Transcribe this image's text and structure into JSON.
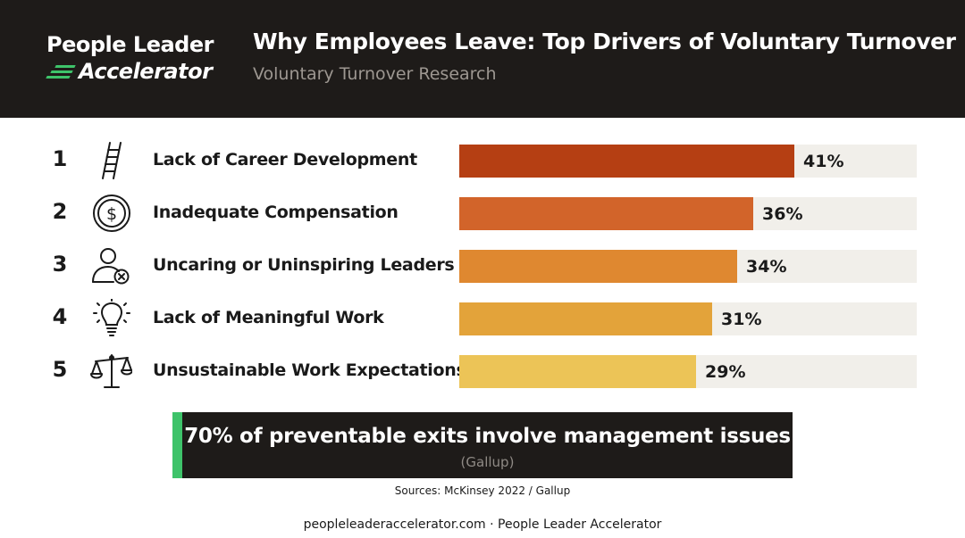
{
  "brand": {
    "logo_line1": "People Leader",
    "logo_line2": "Accelerator",
    "accent_color": "#3ec36a"
  },
  "header": {
    "title": "Why Employees Leave: Top Drivers of Voluntary Turnover",
    "subtitle": "Voluntary Turnover Research"
  },
  "chart_data": {
    "type": "bar",
    "orientation": "horizontal",
    "title": "Why Employees Leave: Top Drivers of Voluntary Turnover",
    "subtitle": "Voluntary Turnover Research",
    "xlim": [
      0,
      56
    ],
    "unit": "%",
    "grid": false,
    "ranks": [
      "1",
      "2",
      "3",
      "4",
      "5"
    ],
    "categories": [
      "Lack of Career Development",
      "Inadequate Compensation",
      "Uncaring or Uninspiring Leaders",
      "Lack of Meaningful Work",
      "Unsustainable Work Expectations"
    ],
    "values": [
      41,
      36,
      34,
      31,
      29
    ],
    "value_labels": [
      "41%",
      "36%",
      "34%",
      "31%",
      "29%"
    ],
    "icons": [
      "ladder-icon",
      "dollar-coin-icon",
      "person-x-icon",
      "lightbulb-icon",
      "scales-icon"
    ],
    "colors": [
      "#b53f13",
      "#d2642a",
      "#df8830",
      "#e3a33a",
      "#ecc457"
    ],
    "track_color": "#f1efea"
  },
  "callout": {
    "text": "70% of preventable exits involve management issues",
    "source": "(Gallup)"
  },
  "sources": "Sources: McKinsey 2022 / Gallup",
  "footer": "peopleleaderaccelerator.com · People Leader Accelerator"
}
